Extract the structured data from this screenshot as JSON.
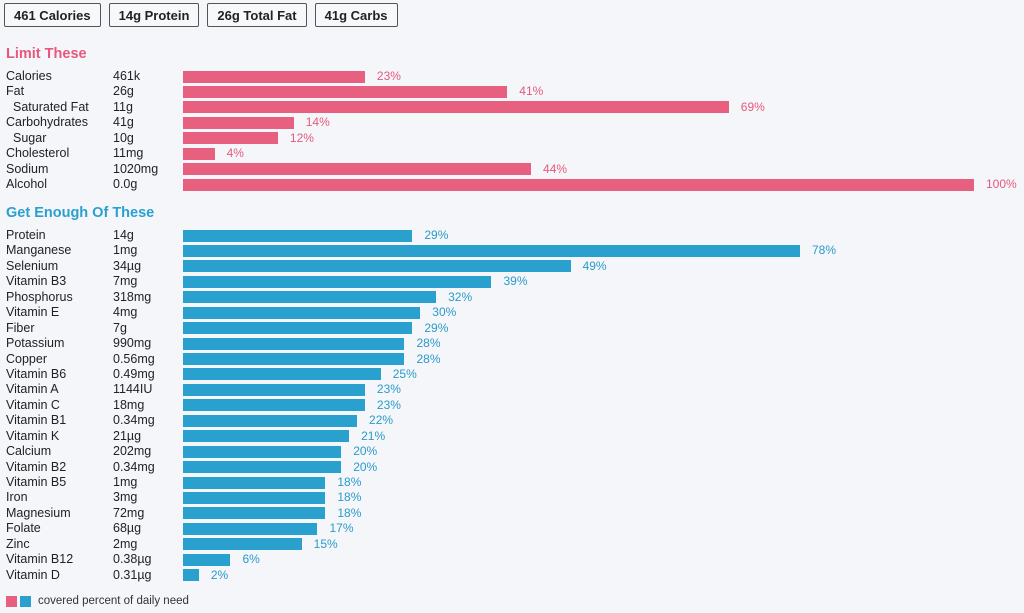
{
  "summary": {
    "badges": [
      "461 Calories",
      "14g Protein",
      "26g Total Fat",
      "41g Carbs"
    ]
  },
  "colors": {
    "limit": "#e8607f",
    "enough": "#2aa0cf"
  },
  "chart_data": [
    {
      "type": "bar",
      "orientation": "horizontal",
      "title": "Limit These",
      "xlim": [
        0,
        100
      ],
      "grid": false,
      "categories": [
        "Calories",
        "Fat",
        "Saturated Fat",
        "Carbohydrates",
        "Sugar",
        "Cholesterol",
        "Sodium",
        "Alcohol"
      ],
      "amounts": [
        "461k",
        "26g",
        "11g",
        "41g",
        "10g",
        "11mg",
        "1020mg",
        "0.0g"
      ],
      "indented": [
        false,
        false,
        true,
        false,
        true,
        false,
        false,
        false
      ],
      "values": [
        23,
        41,
        69,
        14,
        12,
        4,
        44,
        100
      ],
      "value_labels": [
        "23%",
        "41%",
        "69%",
        "14%",
        "12%",
        "4%",
        "44%",
        "100%"
      ]
    },
    {
      "type": "bar",
      "orientation": "horizontal",
      "title": "Get Enough Of These",
      "xlim": [
        0,
        100
      ],
      "grid": false,
      "categories": [
        "Protein",
        "Manganese",
        "Selenium",
        "Vitamin B3",
        "Phosphorus",
        "Vitamin E",
        "Fiber",
        "Potassium",
        "Copper",
        "Vitamin B6",
        "Vitamin A",
        "Vitamin C",
        "Vitamin B1",
        "Vitamin K",
        "Calcium",
        "Vitamin B2",
        "Vitamin B5",
        "Iron",
        "Magnesium",
        "Folate",
        "Zinc",
        "Vitamin B12",
        "Vitamin D"
      ],
      "amounts": [
        "14g",
        "1mg",
        "34µg",
        "7mg",
        "318mg",
        "4mg",
        "7g",
        "990mg",
        "0.56mg",
        "0.49mg",
        "1144IU",
        "18mg",
        "0.34mg",
        "21µg",
        "202mg",
        "0.34mg",
        "1mg",
        "3mg",
        "72mg",
        "68µg",
        "2mg",
        "0.38µg",
        "0.31µg"
      ],
      "values": [
        29,
        78,
        49,
        39,
        32,
        30,
        29,
        28,
        28,
        25,
        23,
        23,
        22,
        21,
        20,
        20,
        18,
        18,
        18,
        17,
        15,
        6,
        2
      ],
      "value_labels": [
        "29%",
        "78%",
        "49%",
        "39%",
        "32%",
        "30%",
        "29%",
        "28%",
        "28%",
        "25%",
        "23%",
        "23%",
        "22%",
        "21%",
        "20%",
        "20%",
        "18%",
        "18%",
        "18%",
        "17%",
        "15%",
        "6%",
        "2%"
      ]
    }
  ],
  "legend": {
    "label": "covered percent of daily need",
    "position": "bottom-left"
  }
}
